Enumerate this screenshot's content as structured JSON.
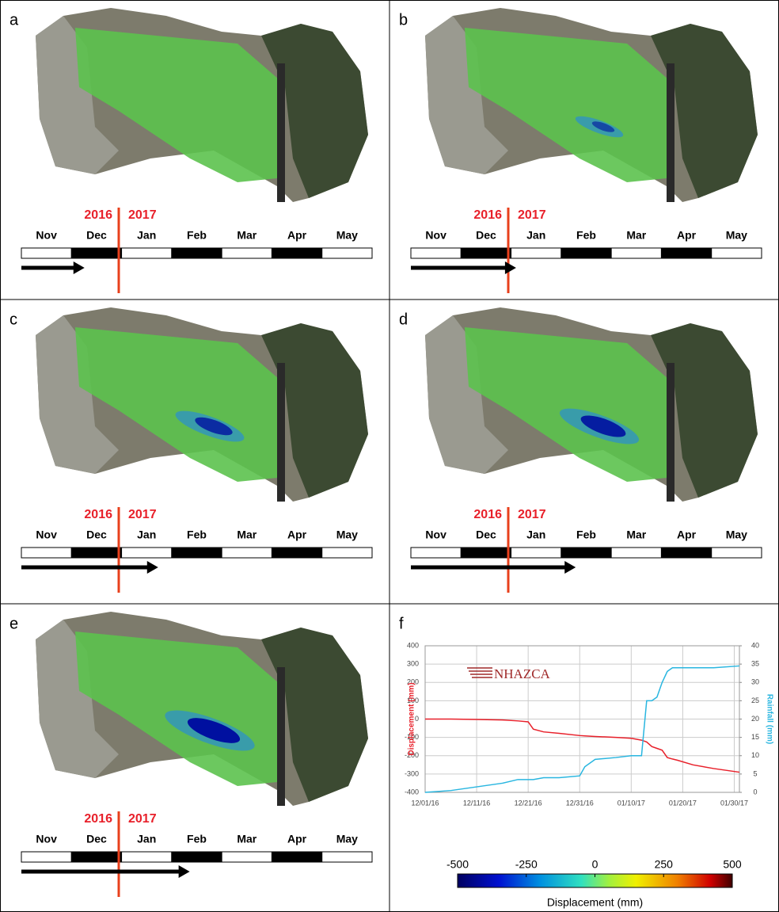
{
  "panels": [
    {
      "label": "a"
    },
    {
      "label": "b"
    },
    {
      "label": "c"
    },
    {
      "label": "d"
    },
    {
      "label": "e"
    },
    {
      "label": "f"
    }
  ],
  "timeline": {
    "years": [
      "2016",
      "2017"
    ],
    "months": [
      "Nov",
      "Dec",
      "Jan",
      "Feb",
      "Mar",
      "Apr",
      "May"
    ]
  },
  "colorbar": {
    "ticks": [
      -500,
      -250,
      0,
      250,
      500
    ],
    "label": "Displacement (mm)"
  },
  "chart_data": {
    "type": "line",
    "logo": "NHAZCA",
    "x": [
      "2016-12-01",
      "2016-12-06",
      "2016-12-11",
      "2016-12-16",
      "2016-12-19",
      "2016-12-21",
      "2016-12-22",
      "2016-12-24",
      "2016-12-27",
      "2016-12-31",
      "2017-01-01",
      "2017-01-03",
      "2017-01-07",
      "2017-01-10",
      "2017-01-12",
      "2017-01-13",
      "2017-01-14",
      "2017-01-15",
      "2017-01-16",
      "2017-01-17",
      "2017-01-18",
      "2017-01-19",
      "2017-01-22",
      "2017-01-26",
      "2017-01-31"
    ],
    "xlim": [
      "2016-12-01",
      "2017-01-31"
    ],
    "xticks": [
      {
        "value": "2016-12-01",
        "label": "12/01/16"
      },
      {
        "value": "2016-12-11",
        "label": "12/11/16"
      },
      {
        "value": "2016-12-21",
        "label": "12/21/16"
      },
      {
        "value": "2016-12-31",
        "label": "12/31/16"
      },
      {
        "value": "2017-01-10",
        "label": "01/10/17"
      },
      {
        "value": "2017-01-20",
        "label": "01/20/17"
      },
      {
        "value": "2017-01-30",
        "label": "01/30/17"
      }
    ],
    "ylabel": "Displacement (mm)",
    "y2label": "Rainfall (mm)",
    "ylim": [
      -400,
      400
    ],
    "yticks": [
      -400,
      -300,
      -200,
      -100,
      0,
      100,
      200,
      300,
      400
    ],
    "y2lim": [
      0,
      40
    ],
    "y2ticks": [
      0,
      5,
      10,
      15,
      20,
      25,
      30,
      35,
      40
    ],
    "grid": true,
    "series": [
      {
        "color": "#e8202a",
        "values": [
          0,
          0,
          -2,
          -5,
          -10,
          -15,
          -55,
          -70,
          -78,
          -90,
          -92,
          -95,
          -100,
          -105,
          -115,
          -125,
          -150,
          -160,
          -170,
          -210,
          -218,
          -225,
          -250,
          -270,
          -290
        ]
      },
      {
        "color": "#29b6e0",
        "axis": "y2",
        "values": [
          0,
          0.5,
          1.5,
          2.5,
          3.5,
          3.5,
          3.5,
          4,
          4,
          4.5,
          7,
          9,
          9.5,
          10,
          10,
          25,
          25,
          26,
          30,
          33,
          34,
          34,
          34,
          34,
          34.5
        ]
      }
    ]
  }
}
